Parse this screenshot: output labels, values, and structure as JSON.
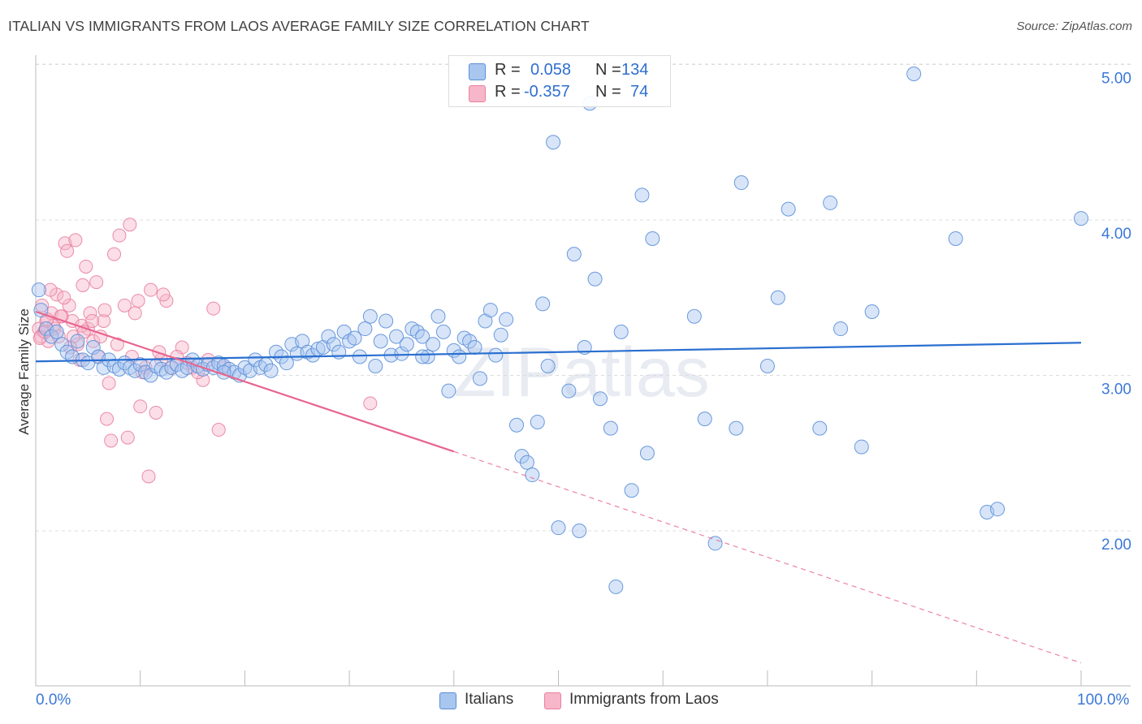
{
  "title": "ITALIAN VS IMMIGRANTS FROM LAOS AVERAGE FAMILY SIZE CORRELATION CHART",
  "source": "Source: ZipAtlas.com",
  "watermark": "ZIPatlas",
  "legend_top": {
    "rows": [
      {
        "r_label": "R =",
        "r_value": "0.058",
        "n_label": "N =",
        "n_value": "134"
      },
      {
        "r_label": "R =",
        "r_value": "-0.357",
        "n_label": "N =",
        "n_value": "74"
      }
    ]
  },
  "legend_bottom": [
    "Italians",
    "Immigrants from Laos"
  ],
  "colors": {
    "blue_fill": "#a9c6ef",
    "blue_stroke": "#5b8fd9",
    "blue_line": "#2a6fd0",
    "pink_fill": "#f7b6ca",
    "pink_stroke": "#e9809f",
    "pink_line": "#e8648e",
    "axis_text": "#3b78d8",
    "grid": "#dcdcdc"
  },
  "chart_data": {
    "type": "scatter",
    "title": "ITALIAN VS IMMIGRANTS FROM LAOS AVERAGE FAMILY SIZE CORRELATION CHART",
    "xlabel": "",
    "ylabel": "Average Family Size",
    "xlim": [
      0,
      100
    ],
    "ylim": [
      1.0,
      5.2
    ],
    "x_tick_labels": [
      "0.0%",
      "100.0%"
    ],
    "y_ticks": [
      2.0,
      3.0,
      4.0,
      5.0
    ],
    "y_tick_labels": [
      "2.00",
      "3.00",
      "4.00",
      "5.00"
    ],
    "grid": "horizontal dashed",
    "legend_placement": "top-center and bottom",
    "series": [
      {
        "name": "Italians",
        "R": 0.058,
        "N": 134,
        "trend": {
          "x": [
            0,
            100
          ],
          "y": [
            3.09,
            3.21
          ]
        },
        "points": [
          [
            0.3,
            3.55
          ],
          [
            0.5,
            3.42
          ],
          [
            1,
            3.3
          ],
          [
            1.5,
            3.25
          ],
          [
            2,
            3.28
          ],
          [
            2.5,
            3.2
          ],
          [
            3,
            3.15
          ],
          [
            3.5,
            3.12
          ],
          [
            4,
            3.22
          ],
          [
            4.5,
            3.1
          ],
          [
            5,
            3.08
          ],
          [
            5.5,
            3.18
          ],
          [
            6,
            3.12
          ],
          [
            6.5,
            3.05
          ],
          [
            7,
            3.1
          ],
          [
            7.5,
            3.06
          ],
          [
            8,
            3.04
          ],
          [
            8.5,
            3.08
          ],
          [
            9,
            3.05
          ],
          [
            9.5,
            3.03
          ],
          [
            10,
            3.07
          ],
          [
            10.5,
            3.02
          ],
          [
            11,
            3.0
          ],
          [
            11.5,
            3.06
          ],
          [
            12,
            3.04
          ],
          [
            12.5,
            3.02
          ],
          [
            13,
            3.05
          ],
          [
            13.5,
            3.07
          ],
          [
            14,
            3.03
          ],
          [
            14.5,
            3.05
          ],
          [
            15,
            3.1
          ],
          [
            15.5,
            3.06
          ],
          [
            16,
            3.04
          ],
          [
            16.5,
            3.07
          ],
          [
            17,
            3.05
          ],
          [
            17.5,
            3.08
          ],
          [
            18,
            3.06
          ],
          [
            18.5,
            3.04
          ],
          [
            19,
            3.02
          ],
          [
            19.5,
            3.0
          ],
          [
            20,
            3.05
          ],
          [
            20.5,
            3.03
          ],
          [
            21,
            3.1
          ],
          [
            21.5,
            3.05
          ],
          [
            22,
            3.07
          ],
          [
            22.5,
            3.03
          ],
          [
            23,
            3.15
          ],
          [
            23.5,
            3.12
          ],
          [
            24,
            3.08
          ],
          [
            24.5,
            3.2
          ],
          [
            25,
            3.14
          ],
          [
            25.5,
            3.22
          ],
          [
            26,
            3.15
          ],
          [
            26.5,
            3.13
          ],
          [
            27,
            3.17
          ],
          [
            27.5,
            3.18
          ],
          [
            28,
            3.25
          ],
          [
            28.5,
            3.2
          ],
          [
            29,
            3.15
          ],
          [
            29.5,
            3.28
          ],
          [
            30,
            3.22
          ],
          [
            30.5,
            3.24
          ],
          [
            31,
            3.12
          ],
          [
            31.5,
            3.3
          ],
          [
            32,
            3.38
          ],
          [
            32.5,
            3.06
          ],
          [
            33,
            3.22
          ],
          [
            33.5,
            3.35
          ],
          [
            34,
            3.13
          ],
          [
            34.5,
            3.25
          ],
          [
            35,
            3.14
          ],
          [
            35.5,
            3.2
          ],
          [
            36,
            3.3
          ],
          [
            36.5,
            3.28
          ],
          [
            37,
            3.25
          ],
          [
            37.5,
            3.12
          ],
          [
            38,
            3.2
          ],
          [
            38.5,
            3.38
          ],
          [
            39,
            3.28
          ],
          [
            39.5,
            2.9
          ],
          [
            40,
            3.16
          ],
          [
            40.5,
            3.12
          ],
          [
            41,
            3.24
          ],
          [
            41.5,
            3.22
          ],
          [
            42,
            3.18
          ],
          [
            42.5,
            2.98
          ],
          [
            43,
            3.35
          ],
          [
            43.5,
            3.42
          ],
          [
            44,
            3.13
          ],
          [
            44.5,
            3.26
          ],
          [
            45,
            3.36
          ],
          [
            46,
            2.68
          ],
          [
            46.5,
            2.48
          ],
          [
            47,
            2.44
          ],
          [
            47.5,
            2.36
          ],
          [
            48,
            2.7
          ],
          [
            48.5,
            3.46
          ],
          [
            49,
            3.06
          ],
          [
            49.5,
            4.5
          ],
          [
            50,
            2.02
          ],
          [
            51,
            2.9
          ],
          [
            51.5,
            3.78
          ],
          [
            52,
            2.0
          ],
          [
            52.5,
            3.18
          ],
          [
            53,
            4.75
          ],
          [
            53.5,
            3.62
          ],
          [
            54,
            2.85
          ],
          [
            55,
            2.66
          ],
          [
            55.5,
            1.64
          ],
          [
            56,
            3.28
          ],
          [
            57,
            2.26
          ],
          [
            58,
            4.16
          ],
          [
            58.5,
            2.5
          ],
          [
            59,
            3.88
          ],
          [
            63,
            3.38
          ],
          [
            64,
            2.72
          ],
          [
            65,
            1.92
          ],
          [
            67,
            2.66
          ],
          [
            67.5,
            4.24
          ],
          [
            70,
            3.06
          ],
          [
            71,
            3.5
          ],
          [
            72,
            4.07
          ],
          [
            75,
            2.66
          ],
          [
            76,
            4.11
          ],
          [
            77,
            3.3
          ],
          [
            79,
            2.54
          ],
          [
            80,
            3.41
          ],
          [
            84,
            4.94
          ],
          [
            88,
            3.88
          ],
          [
            91,
            2.12
          ],
          [
            92,
            2.14
          ],
          [
            100,
            4.01
          ],
          [
            37,
            3.12
          ],
          [
            18,
            3.02
          ]
        ]
      },
      {
        "name": "Immigrants from Laos",
        "R": -0.357,
        "N": 74,
        "trend": {
          "x": [
            0,
            40
          ],
          "y": [
            3.41,
            2.51
          ]
        },
        "trend_extension": {
          "x": [
            40,
            100
          ],
          "y": [
            2.51,
            1.15
          ]
        },
        "points": [
          [
            0.3,
            3.3
          ],
          [
            0.5,
            3.25
          ],
          [
            0.8,
            3.28
          ],
          [
            1,
            3.35
          ],
          [
            1.2,
            3.22
          ],
          [
            1.5,
            3.4
          ],
          [
            1.8,
            3.3
          ],
          [
            2,
            3.52
          ],
          [
            2.2,
            3.25
          ],
          [
            2.5,
            3.38
          ],
          [
            2.8,
            3.85
          ],
          [
            3,
            3.8
          ],
          [
            3.2,
            3.45
          ],
          [
            3.5,
            3.35
          ],
          [
            3.8,
            3.87
          ],
          [
            4,
            3.2
          ],
          [
            4.2,
            3.1
          ],
          [
            4.5,
            3.58
          ],
          [
            4.8,
            3.7
          ],
          [
            5,
            3.3
          ],
          [
            5.2,
            3.4
          ],
          [
            5.5,
            3.22
          ],
          [
            6,
            3.12
          ],
          [
            6.5,
            3.35
          ],
          [
            7,
            2.95
          ],
          [
            7.5,
            3.78
          ],
          [
            8,
            3.9
          ],
          [
            8.5,
            3.45
          ],
          [
            9,
            3.97
          ],
          [
            9.5,
            3.4
          ],
          [
            10,
            2.8
          ],
          [
            10.5,
            3.05
          ],
          [
            11,
            3.55
          ],
          [
            11.5,
            2.76
          ],
          [
            12,
            3.1
          ],
          [
            12.5,
            3.48
          ],
          [
            13,
            3.05
          ],
          [
            14,
            3.18
          ],
          [
            15,
            3.05
          ],
          [
            16,
            2.97
          ],
          [
            17,
            3.43
          ],
          [
            17.5,
            2.65
          ],
          [
            18,
            3.05
          ],
          [
            32,
            2.82
          ],
          [
            0.6,
            3.45
          ],
          [
            1.4,
            3.55
          ],
          [
            2.4,
            3.38
          ],
          [
            3.6,
            3.25
          ],
          [
            4.4,
            3.32
          ],
          [
            5.8,
            3.6
          ],
          [
            6.8,
            2.72
          ],
          [
            7.2,
            2.58
          ],
          [
            8.8,
            2.6
          ],
          [
            10.8,
            2.35
          ],
          [
            11.8,
            3.15
          ],
          [
            0.9,
            3.28
          ],
          [
            1.7,
            3.32
          ],
          [
            2.7,
            3.5
          ],
          [
            3.3,
            3.18
          ],
          [
            4.6,
            3.28
          ],
          [
            5.4,
            3.35
          ],
          [
            6.2,
            3.25
          ],
          [
            6.6,
            3.42
          ],
          [
            7.8,
            3.2
          ],
          [
            9.2,
            3.12
          ],
          [
            9.8,
            3.48
          ],
          [
            10.2,
            3.02
          ],
          [
            12.2,
            3.52
          ],
          [
            13.5,
            3.12
          ],
          [
            14.5,
            3.08
          ],
          [
            15.5,
            3.02
          ],
          [
            16.5,
            3.1
          ],
          [
            0.4,
            3.24
          ],
          [
            1.1,
            3.36
          ]
        ]
      }
    ]
  }
}
